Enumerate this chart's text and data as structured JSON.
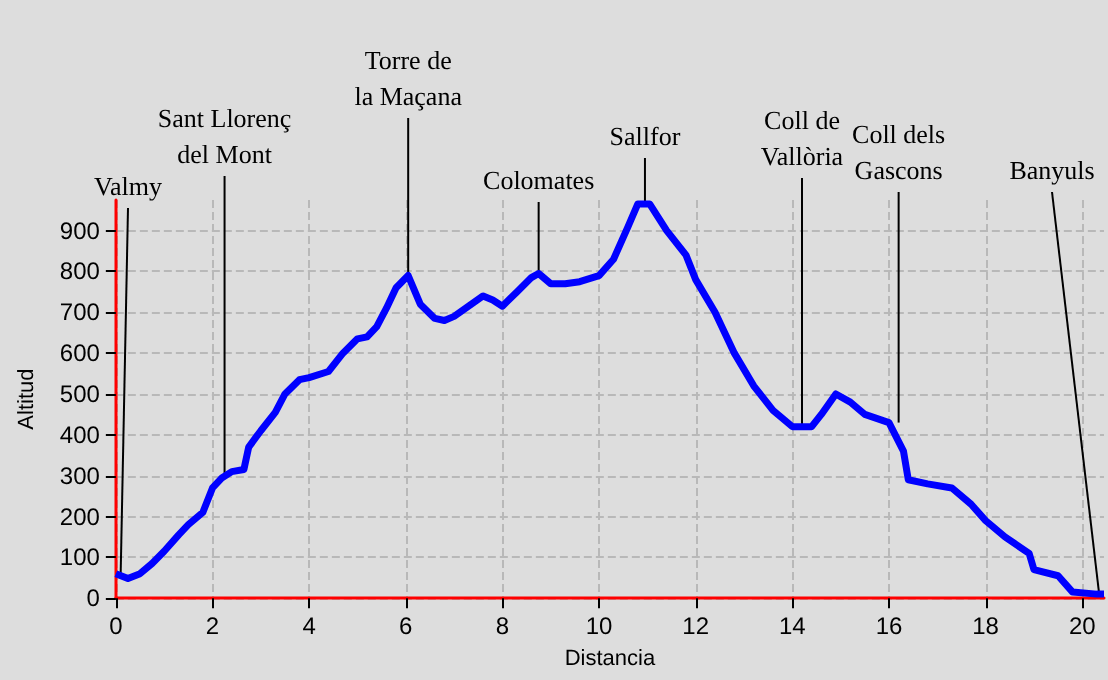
{
  "chart_data": {
    "type": "line",
    "xlabel": "Distancia",
    "ylabel": "Altitud",
    "xlim": [
      0,
      20.45
    ],
    "ylim": [
      0,
      975
    ],
    "xticks": [
      0,
      2,
      4,
      6,
      8,
      10,
      12,
      14,
      16,
      18,
      20
    ],
    "yticks": [
      0,
      100,
      200,
      300,
      400,
      500,
      600,
      700,
      800,
      900
    ],
    "grid": true,
    "marker": "none",
    "line_style": "solid",
    "series": [
      {
        "color": "#0000ff",
        "x": [
          0,
          0.25,
          0.5,
          0.75,
          1.0,
          1.3,
          1.5,
          1.8,
          2.0,
          2.2,
          2.4,
          2.65,
          2.75,
          3.0,
          3.3,
          3.5,
          3.8,
          4.0,
          4.4,
          4.7,
          5.0,
          5.2,
          5.4,
          5.6,
          5.8,
          6.05,
          6.3,
          6.6,
          6.8,
          7.0,
          7.3,
          7.6,
          7.8,
          8.0,
          8.3,
          8.6,
          8.75,
          9.0,
          9.3,
          9.6,
          10.0,
          10.3,
          10.6,
          10.8,
          11.05,
          11.4,
          11.8,
          12.0,
          12.4,
          12.8,
          13.2,
          13.6,
          14.0,
          14.4,
          14.6,
          14.9,
          15.2,
          15.5,
          16.0,
          16.3,
          16.4,
          16.8,
          17.3,
          17.7,
          18.0,
          18.4,
          18.9,
          19.0,
          19.5,
          19.8,
          20.3,
          20.45
        ],
        "values": [
          60,
          48,
          60,
          85,
          115,
          155,
          180,
          210,
          270,
          295,
          310,
          315,
          370,
          410,
          455,
          500,
          535,
          540,
          555,
          600,
          635,
          640,
          665,
          710,
          760,
          790,
          720,
          685,
          680,
          690,
          715,
          740,
          730,
          715,
          750,
          785,
          795,
          770,
          770,
          775,
          790,
          830,
          910,
          965,
          965,
          900,
          840,
          780,
          700,
          600,
          520,
          460,
          420,
          420,
          450,
          500,
          480,
          450,
          430,
          360,
          290,
          280,
          270,
          230,
          190,
          150,
          110,
          70,
          55,
          15,
          10,
          10
        ]
      }
    ],
    "annotations": [
      {
        "text": "Valmy",
        "x": 0.1,
        "y": 60
      },
      {
        "text": "Sant Llorenç\ndel Mont",
        "x": 2.25,
        "y": 300
      },
      {
        "text": "Torre de\nla Maçana",
        "x": 6.05,
        "y": 790
      },
      {
        "text": "Colomates",
        "x": 8.75,
        "y": 800
      },
      {
        "text": "Sallfor",
        "x": 10.95,
        "y": 965
      },
      {
        "text": "Coll de\nVallòria",
        "x": 14.2,
        "y": 415
      },
      {
        "text": "Coll dels\nGascons",
        "x": 16.2,
        "y": 430
      },
      {
        "text": "Banyuls",
        "x": 20.35,
        "y": 10
      }
    ]
  }
}
